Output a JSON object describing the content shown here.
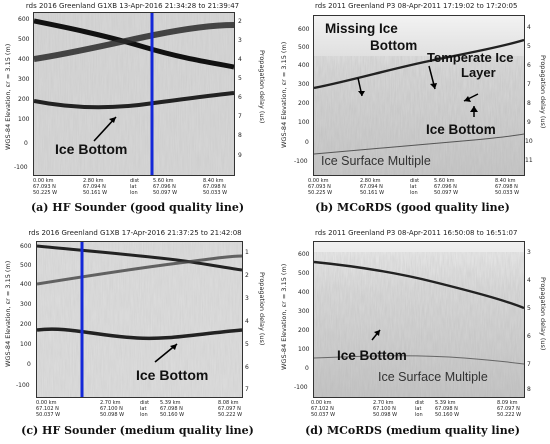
{
  "panels": {
    "a": {
      "title": "rds 2016 Greenland G1XB 13-Apr-2016 21:34:28 to 21:39:47",
      "ylabel": "WGS-84 Elevation, εr = 3.15 (m)",
      "yrlabel": "Propagation delay (us)",
      "yticks": [
        "600",
        "500",
        "400",
        "300",
        "200",
        "100",
        "0",
        "-100"
      ],
      "yrticks": [
        "2",
        "3",
        "4",
        "5",
        "6",
        "7",
        "8",
        "9"
      ],
      "xcols": [
        [
          "0.00 km",
          "67.093 N",
          "50.225 W"
        ],
        [
          "2.80 km",
          "67.094 N",
          "50.161 W"
        ],
        [
          "dist",
          "lat",
          "lon"
        ],
        [
          "5.60 km",
          "67.096 N",
          "50.097 W"
        ],
        [
          "8.40 km",
          "67.098 N",
          "50.033 W"
        ]
      ],
      "annotations": [
        "Ice Bottom"
      ],
      "caption": "(a) HF Sounder (good quality line)",
      "marker_color": "#1428d8"
    },
    "b": {
      "title": "rds 2011 Greenland P3 08-Apr-2011 17:19:02 to 17:20:05",
      "ylabel": "WGS-84 Elevation, εr = 3.15 (m)",
      "yrlabel": "Propagation delay (us)",
      "yticks": [
        "600",
        "500",
        "400",
        "300",
        "200",
        "100",
        "0",
        "-100"
      ],
      "yrticks": [
        "4",
        "5",
        "6",
        "7",
        "8",
        "9",
        "10",
        "11"
      ],
      "xcols": [
        [
          "0.00 km",
          "67.093 N",
          "50.225 W"
        ],
        [
          "2.80 km",
          "67.094 N",
          "50.161 W"
        ],
        [
          "dist",
          "lat",
          "lon"
        ],
        [
          "5.60 km",
          "67.096 N",
          "50.097 W"
        ],
        [
          "8.40 km",
          "67.098 N",
          "50.033 W"
        ]
      ],
      "annotations": [
        "Missing Ice",
        "Bottom",
        "Temperate Ice",
        "Layer",
        "Ice Bottom",
        "Ice Surface Multiple"
      ],
      "caption": "(b) MCoRDS (good quality line)"
    },
    "c": {
      "title": "rds 2016 Greenland G1XB 17-Apr-2016 21:37:25 to 21:42:08",
      "ylabel": "WGS-84 Elevation, εr = 3.15 (m)",
      "yrlabel": "Propagation delay (us)",
      "yticks": [
        "600",
        "500",
        "400",
        "300",
        "200",
        "100",
        "0",
        "-100"
      ],
      "yrticks": [
        "1",
        "2",
        "3",
        "4",
        "5",
        "6",
        "7"
      ],
      "xcols": [
        [
          "0.00 km",
          "67.102 N",
          "50.037 W"
        ],
        [
          "2.70 km",
          "67.100 N",
          "50.098 W"
        ],
        [
          "dist",
          "lat",
          "lon"
        ],
        [
          "5.39 km",
          "67.098 N",
          "50.160 W"
        ],
        [
          "8.08 km",
          "67.097 N",
          "50.222 W"
        ]
      ],
      "annotations": [
        "Ice Bottom"
      ],
      "caption": "(c) HF Sounder (medium quality line)",
      "marker_color": "#1428d8"
    },
    "d": {
      "title": "rds 2011 Greenland P3 08-Apr-2011 16:50:08 to 16:51:07",
      "ylabel": "WGS-84 Elevation, εr = 3.15 (m)",
      "yrlabel": "Propagation delay (us)",
      "yticks": [
        "600",
        "500",
        "400",
        "300",
        "200",
        "100",
        "0",
        "-100"
      ],
      "yrticks": [
        "3",
        "4",
        "5",
        "6",
        "7",
        "8"
      ],
      "xcols": [
        [
          "0.00 km",
          "67.102 N",
          "50.037 W"
        ],
        [
          "2.70 km",
          "67.100 N",
          "50.098 W"
        ],
        [
          "dist",
          "lat",
          "lon"
        ],
        [
          "5.39 km",
          "67.098 N",
          "50.160 W"
        ],
        [
          "8.09 km",
          "67.097 N",
          "50.222 W"
        ]
      ],
      "annotations": [
        "Ice Bottom",
        "Ice Surface Multiple"
      ],
      "caption": "(d) MCoRDS (medium quality line)"
    }
  }
}
